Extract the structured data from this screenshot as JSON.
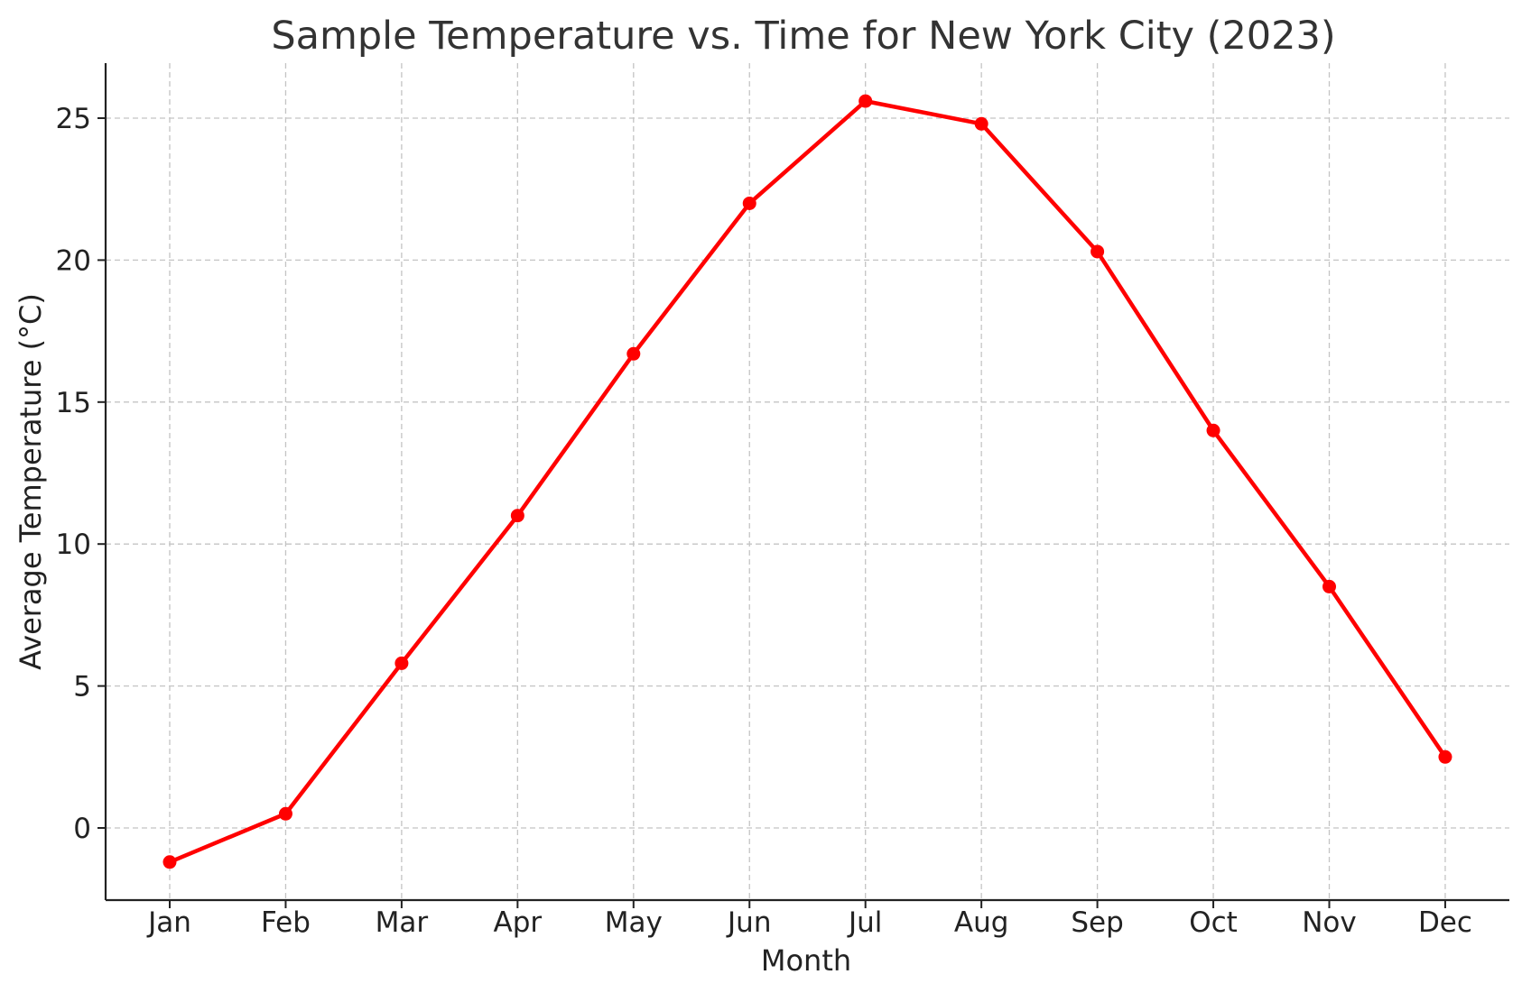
{
  "chart_data": {
    "type": "line",
    "title": "Sample Temperature vs. Time for New York City (2023)",
    "xlabel": "Month",
    "ylabel": "Average Temperature (°C)",
    "categories": [
      "Jan",
      "Feb",
      "Mar",
      "Apr",
      "May",
      "Jun",
      "Jul",
      "Aug",
      "Sep",
      "Oct",
      "Nov",
      "Dec"
    ],
    "series": [
      {
        "values": [
          -1.2,
          0.5,
          5.8,
          11.0,
          16.7,
          22.0,
          25.6,
          24.8,
          20.3,
          14.0,
          8.5,
          2.5
        ],
        "color": "#ff0000",
        "marker": "circle"
      }
    ],
    "ylim": [
      -2.5,
      27.0
    ],
    "yticks": [
      0,
      5,
      10,
      15,
      20,
      25
    ],
    "grid": true,
    "grid_style": "dashed",
    "legend": "none"
  }
}
